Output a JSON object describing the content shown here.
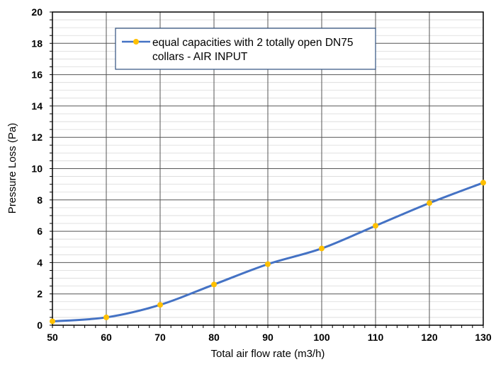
{
  "chart_data": {
    "type": "line",
    "title": "",
    "xlabel": "Total air flow rate (m3/h)",
    "ylabel": "Pressure Loss (Pa)",
    "xlim": [
      50,
      130
    ],
    "ylim": [
      0,
      20
    ],
    "x_ticks": [
      "50",
      "60",
      "70",
      "80",
      "90",
      "100",
      "110",
      "120",
      "130"
    ],
    "y_ticks": [
      "0",
      "2",
      "4",
      "6",
      "8",
      "10",
      "12",
      "14",
      "16",
      "18",
      "20"
    ],
    "grid": true,
    "legend_position": "top-center",
    "series": [
      {
        "name": "equal capacities with 2 totally open DN75 collars - AIR INPUT",
        "legend_lines": [
          "equal capacities with 2 totally open DN75",
          "collars - AIR INPUT"
        ],
        "line_color": "#4472C4",
        "marker_color": "#FFC000",
        "x": [
          50,
          60,
          70,
          80,
          90,
          100,
          110,
          120,
          130
        ],
        "y": [
          0.25,
          0.5,
          1.3,
          2.6,
          3.9,
          4.9,
          6.35,
          7.8,
          9.1
        ]
      }
    ]
  }
}
